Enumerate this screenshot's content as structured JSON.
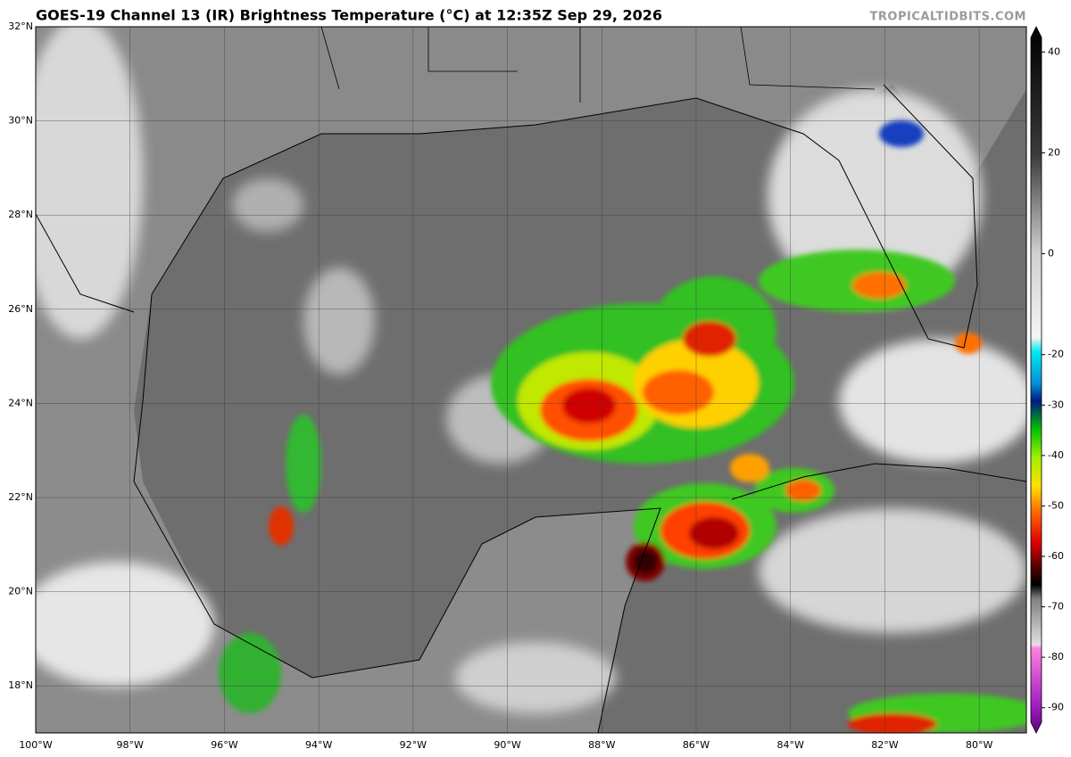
{
  "header": {
    "title": "GOES-19 Channel 13 (IR) Brightness Temperature (°C) at 12:35Z Sep 29, 2026",
    "watermark": "TROPICALTIDBITS.COM"
  },
  "map": {
    "lat_range": [
      17,
      32
    ],
    "lon_range": [
      -100,
      -79
    ],
    "lat_labels": [
      {
        "value": 18,
        "label": "18°N"
      },
      {
        "value": 20,
        "label": "20°N"
      },
      {
        "value": 22,
        "label": "22°N"
      },
      {
        "value": 24,
        "label": "24°N"
      },
      {
        "value": 26,
        "label": "26°N"
      },
      {
        "value": 28,
        "label": "28°N"
      },
      {
        "value": 30,
        "label": "30°N"
      },
      {
        "value": 32,
        "label": "32°N"
      }
    ],
    "lon_labels": [
      {
        "value": -100,
        "label": "100°W"
      },
      {
        "value": -98,
        "label": "98°W"
      },
      {
        "value": -96,
        "label": "96°W"
      },
      {
        "value": -94,
        "label": "94°W"
      },
      {
        "value": -92,
        "label": "92°W"
      },
      {
        "value": -90,
        "label": "90°W"
      },
      {
        "value": -88,
        "label": "88°W"
      },
      {
        "value": -86,
        "label": "86°W"
      },
      {
        "value": -84,
        "label": "84°W"
      },
      {
        "value": -82,
        "label": "82°W"
      },
      {
        "value": -80,
        "label": "80°W"
      }
    ]
  },
  "colorbar": {
    "range": [
      -95,
      45
    ],
    "ticks": [
      40,
      20,
      0,
      -20,
      -30,
      -40,
      -50,
      -60,
      -70,
      -80,
      -90
    ]
  }
}
